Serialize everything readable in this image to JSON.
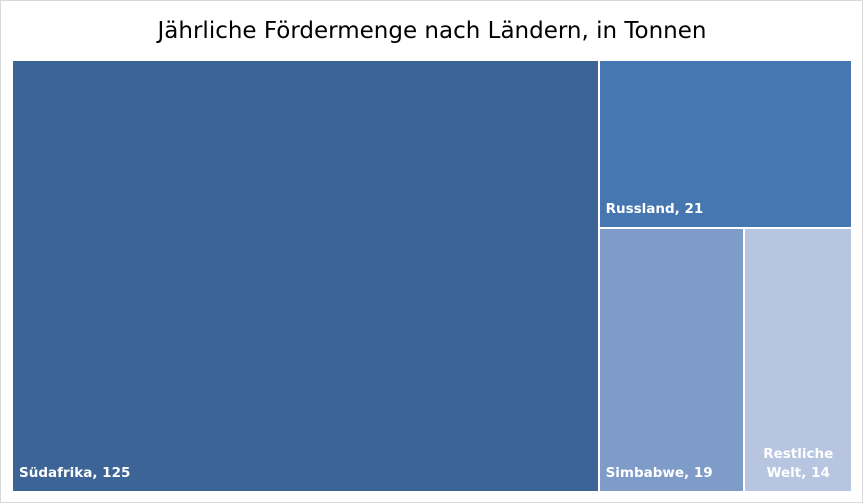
{
  "chart_data": {
    "type": "treemap",
    "title": "Jährliche Fördermenge nach Ländern, in Tonnen",
    "categories": [
      "Südafrika",
      "Russland",
      "Simbabwe",
      "Restliche Welt"
    ],
    "values": [
      125,
      21,
      19,
      14
    ],
    "labels": [
      "Südafrika, 125",
      "Russland, 21",
      "Simbabwe, 19",
      "Restliche Welt, 14"
    ],
    "colors": [
      "#3d6496",
      "#4677b0",
      "#7f9cc8",
      "#b7c5e1"
    ]
  }
}
